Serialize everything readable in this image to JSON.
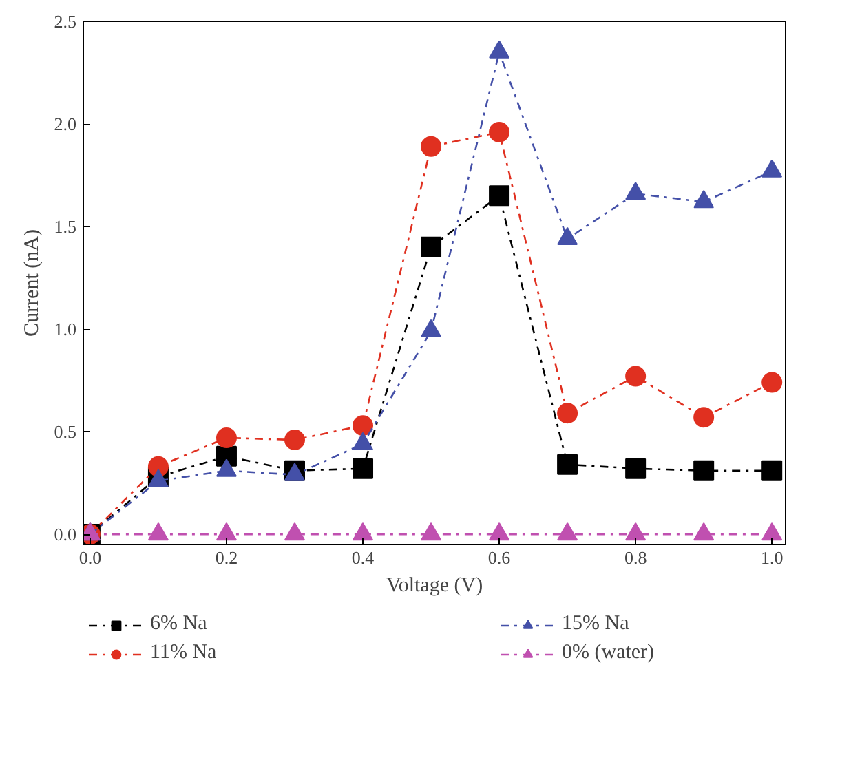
{
  "chart_data": {
    "type": "line",
    "xlabel": "Voltage (V)",
    "ylabel": "Current (nA)",
    "x": [
      0,
      0.1,
      0.2,
      0.3,
      0.4,
      0.5,
      0.6,
      0.7,
      0.8,
      0.9,
      1.0
    ],
    "xlim": [
      -0.01,
      1.02
    ],
    "ylim": [
      -0.05,
      2.5
    ],
    "xticks": [
      {
        "value": 0,
        "label": "0.0"
      },
      0.2,
      0.4,
      0.6,
      0.8,
      {
        "value": 1,
        "label": "1.0"
      }
    ],
    "yticks": [
      {
        "value": 0,
        "label": "0.0"
      },
      0.5,
      {
        "value": 1,
        "label": "1.0"
      },
      1.5,
      {
        "value": 2,
        "label": "2.0"
      },
      2.5
    ],
    "grid": false,
    "legend": "bottom",
    "line_style": "dashed",
    "series": [
      {
        "name": "6% Na",
        "color": "#000000",
        "marker": "square",
        "values": [
          0,
          0.28,
          0.38,
          0.31,
          0.32,
          1.4,
          1.65,
          0.34,
          0.32,
          0.31,
          0.31
        ]
      },
      {
        "name": "11% Na",
        "color": "#e03020",
        "marker": "circle",
        "values": [
          0,
          0.33,
          0.47,
          0.46,
          0.53,
          1.89,
          1.96,
          0.59,
          0.77,
          0.57,
          0.74
        ]
      },
      {
        "name": "15% Na",
        "color": "#4450a8",
        "marker": "triangle",
        "values": [
          0,
          0.26,
          0.31,
          0.29,
          0.44,
          0.99,
          2.35,
          1.44,
          1.66,
          1.62,
          1.77
        ]
      },
      {
        "name": "0% (water)",
        "color": "#c050b0",
        "marker": "triangle",
        "values": [
          0,
          0,
          0,
          0,
          0,
          0,
          0,
          0,
          0,
          0,
          0
        ]
      }
    ]
  }
}
